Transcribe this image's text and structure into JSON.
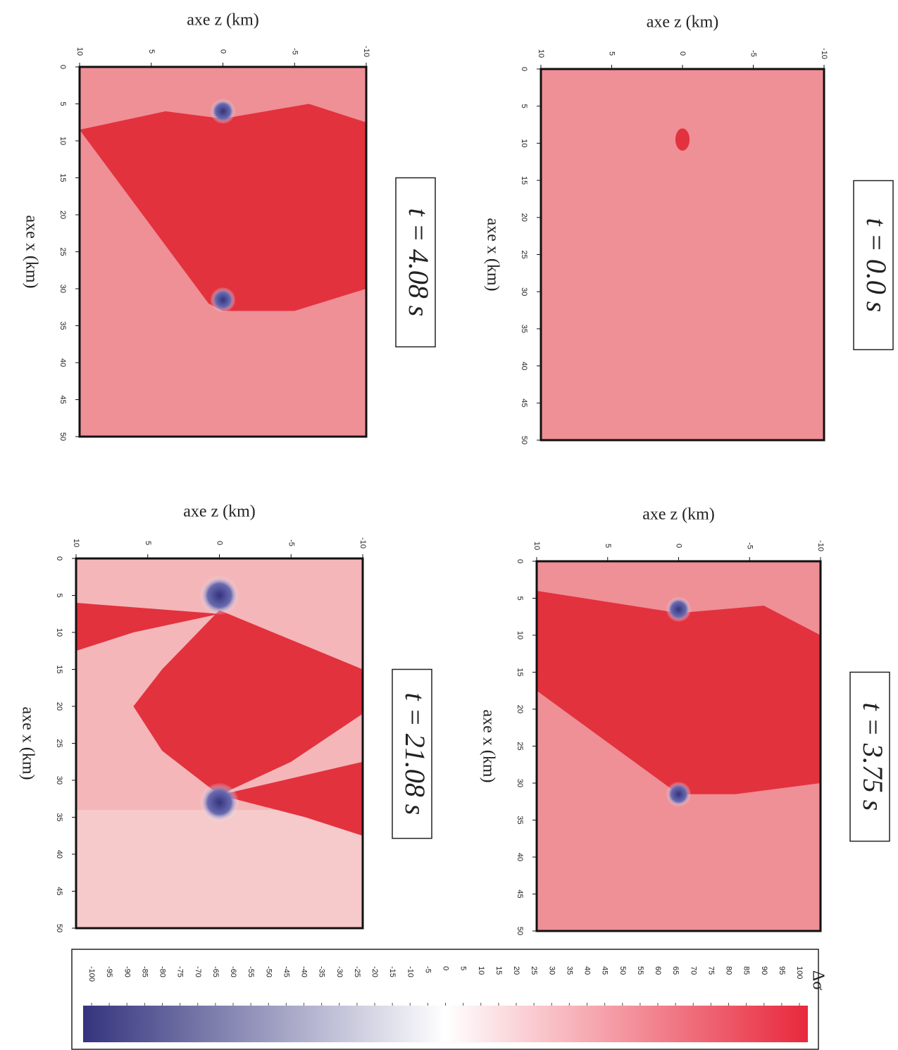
{
  "chart_data": [
    {
      "type": "heatmap",
      "title": "t = 0.0 s",
      "xlabel": "axe x (km)",
      "ylabel": "axe z (km)",
      "xlim": [
        0,
        50
      ],
      "xticks": [
        0,
        5,
        10,
        15,
        20,
        25,
        30,
        35,
        40,
        45,
        50
      ],
      "ylim": [
        10,
        -10
      ],
      "yticks": [
        10,
        5,
        0,
        -5,
        -10
      ]
    },
    {
      "type": "heatmap",
      "title": "t = 4.08 s",
      "xlabel": "axe x (km)",
      "ylabel": "axe z (km)",
      "xlim": [
        0,
        50
      ],
      "xticks": [
        0,
        5,
        10,
        15,
        20,
        25,
        30,
        35,
        40,
        45,
        50
      ],
      "ylim": [
        10,
        -10
      ],
      "yticks": [
        10,
        5,
        0,
        -5,
        -10
      ]
    },
    {
      "type": "heatmap",
      "title": "t = 3.75 s",
      "xlabel": "axe x (km)",
      "ylabel": "axe z (km)",
      "xlim": [
        0,
        50
      ],
      "xticks": [
        0,
        5,
        10,
        15,
        20,
        25,
        30,
        35,
        40,
        45,
        50
      ],
      "ylim": [
        10,
        -10
      ],
      "yticks": [
        10,
        5,
        0,
        -5,
        -10
      ]
    },
    {
      "type": "heatmap",
      "title": "t = 21.08 s",
      "xlabel": "axe x (km)",
      "ylabel": "axe z (km)",
      "xlim": [
        0,
        50
      ],
      "xticks": [
        0,
        5,
        10,
        15,
        20,
        25,
        30,
        35,
        40,
        45,
        50
      ],
      "ylim": [
        10,
        -10
      ],
      "yticks": [
        10,
        5,
        0,
        -5,
        -10
      ]
    },
    {
      "type": "colorbar",
      "label": "Δσ",
      "clim": [
        -100,
        100
      ],
      "ticks": [
        -100,
        -95,
        -90,
        -85,
        -80,
        -75,
        -70,
        -65,
        -60,
        -55,
        -50,
        -45,
        -40,
        -35,
        -30,
        -25,
        -20,
        -15,
        -10,
        -5,
        0,
        5,
        10,
        15,
        20,
        25,
        30,
        35,
        40,
        45,
        50,
        55,
        60,
        65,
        70,
        75,
        80,
        85,
        90,
        95,
        100
      ],
      "colors": [
        "#34347e",
        "#ffffff",
        "#e8283c"
      ]
    }
  ]
}
